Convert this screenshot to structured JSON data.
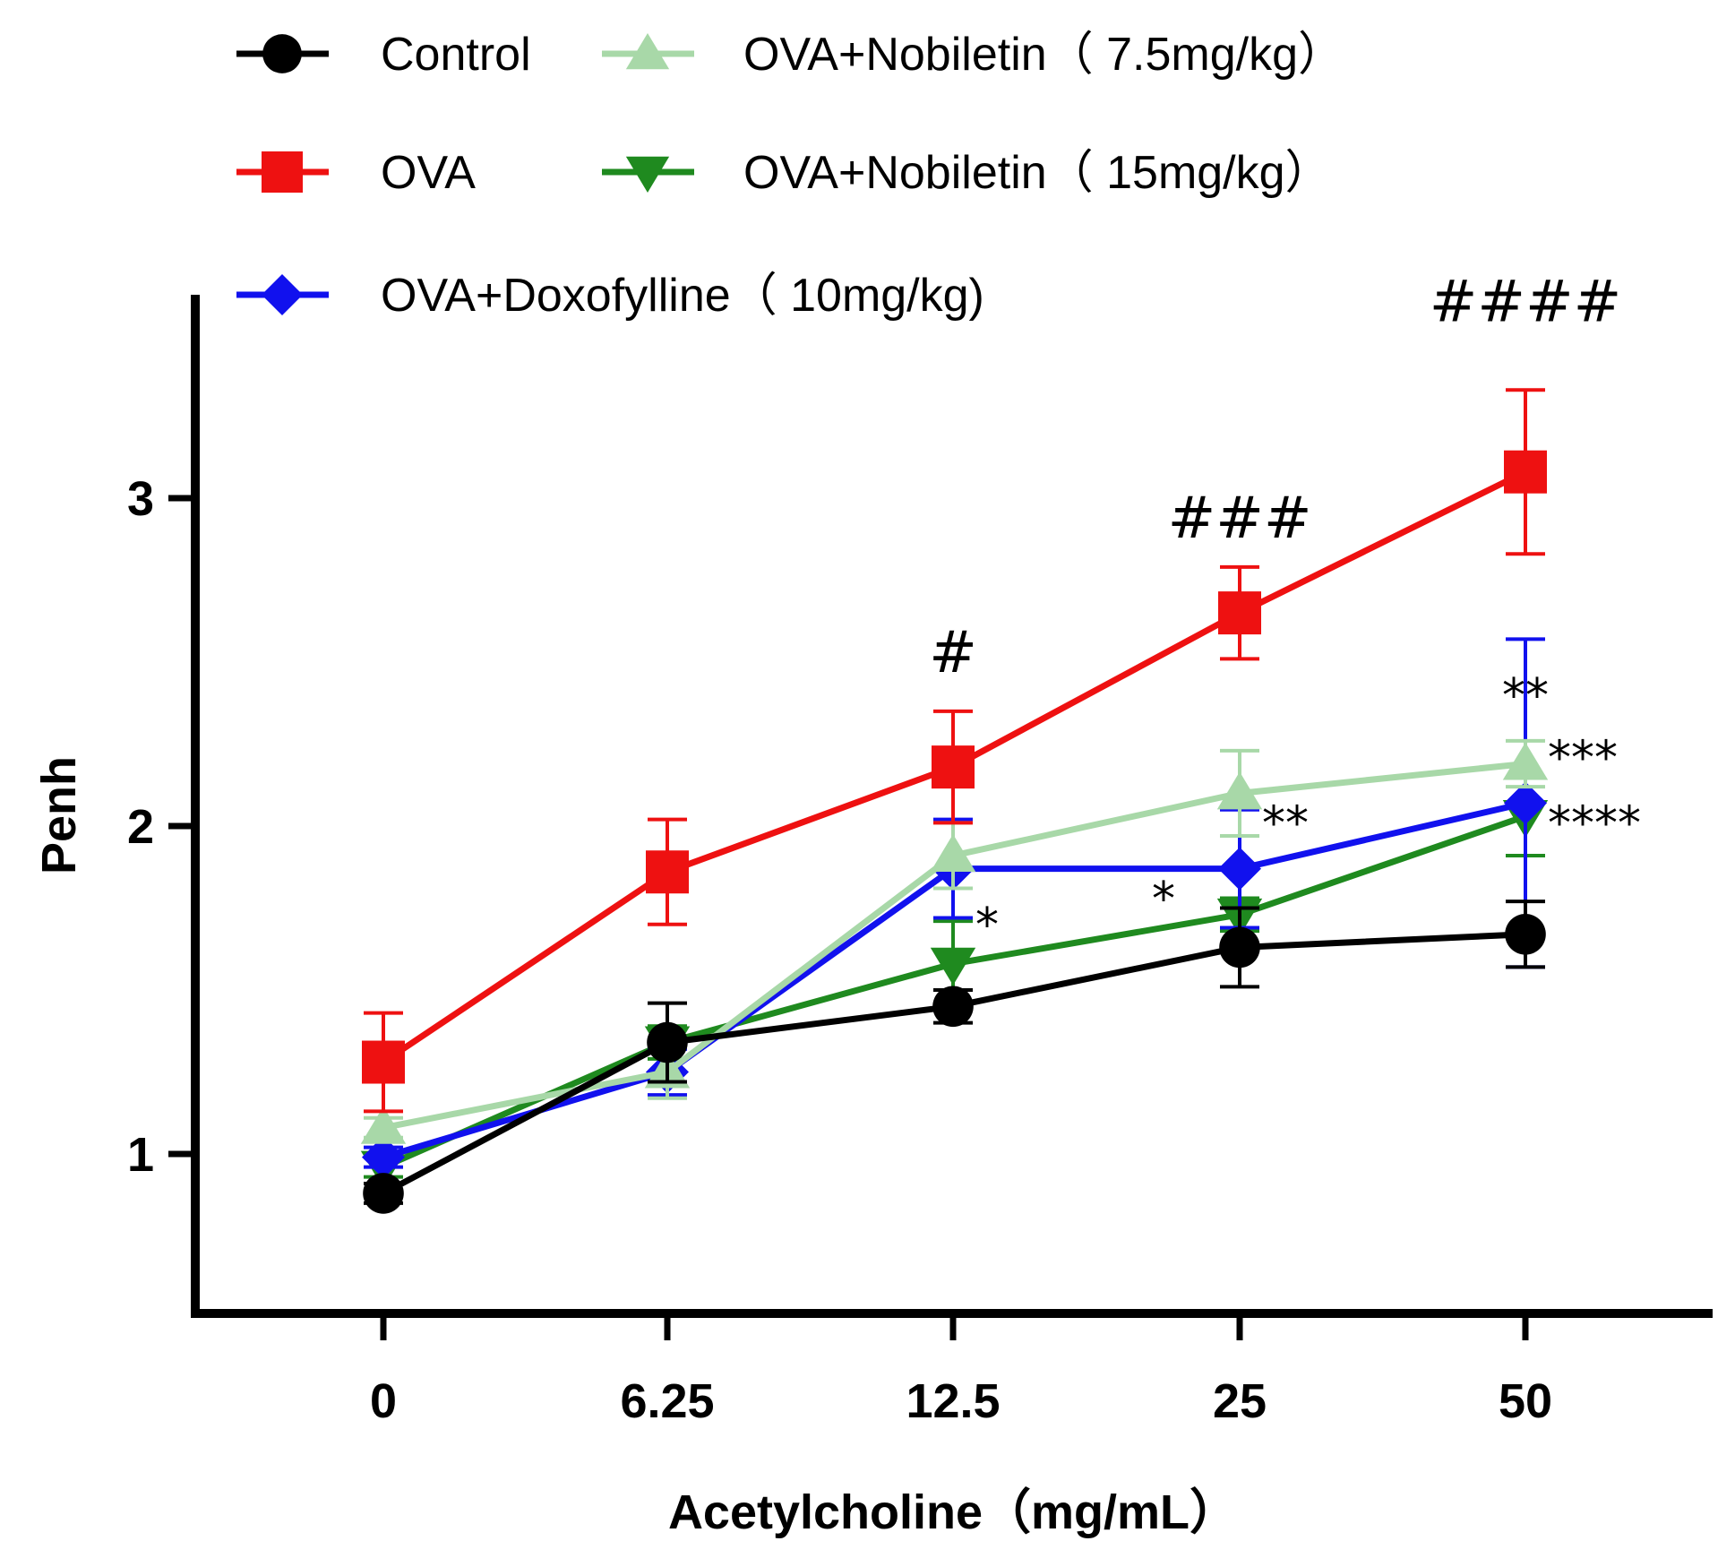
{
  "chart_data": {
    "type": "line",
    "title": "",
    "xlabel": "Acetylcholine（mg/mL）",
    "ylabel": "Penh",
    "categories": [
      "0",
      "6.25",
      "12.5",
      "25",
      "50"
    ],
    "y_ticks": [
      "1",
      "2",
      "3"
    ],
    "ylim": [
      0.5,
      3.6
    ],
    "grid": false,
    "legend_position": "top",
    "error_bars": true,
    "series": [
      {
        "name": "Control",
        "color": "#000000",
        "marker": "circle",
        "values": [
          0.88,
          1.34,
          1.45,
          1.63,
          1.67
        ],
        "errors": [
          0.03,
          0.12,
          0.05,
          0.12,
          0.1
        ]
      },
      {
        "name": "OVA",
        "color": "#ee1111",
        "marker": "square",
        "values": [
          1.28,
          1.86,
          2.18,
          2.65,
          3.08
        ],
        "errors": [
          0.15,
          0.16,
          0.17,
          0.14,
          0.25
        ]
      },
      {
        "name": "OVA+Doxofylline（ 10mg/kg)",
        "color": "#1111ee",
        "marker": "diamond",
        "values": [
          0.99,
          1.25,
          1.87,
          1.87,
          2.07
        ],
        "errors": [
          0.03,
          0.07,
          0.15,
          0.18,
          0.5
        ]
      },
      {
        "name": "OVA+Nobiletin（ 7.5mg/kg）",
        "color": "#a8d8a8",
        "marker": "triangle-up",
        "values": [
          1.08,
          1.25,
          1.91,
          2.1,
          2.19
        ],
        "errors": [
          0.03,
          0.08,
          0.1,
          0.13,
          0.07
        ]
      },
      {
        "name": "OVA+Nobiletin（ 15mg/kg）",
        "color": "#1f8a1f",
        "marker": "triangle-down",
        "values": [
          0.96,
          1.34,
          1.58,
          1.73,
          2.03
        ],
        "errors": [
          0.03,
          0.05,
          0.13,
          0.05,
          0.12
        ]
      }
    ],
    "annotations": [
      {
        "text": "#",
        "category": "12.5",
        "y": 2.47,
        "kind": "hash"
      },
      {
        "text": "###",
        "category": "25",
        "y": 2.88,
        "kind": "hash"
      },
      {
        "text": "####",
        "category": "50",
        "y": 3.54,
        "kind": "hash"
      },
      {
        "text": "*",
        "category": "12.5",
        "y": 1.65,
        "kind": "star",
        "side": "right"
      },
      {
        "text": "*",
        "category": "25",
        "y": 1.73,
        "kind": "star",
        "side": "left"
      },
      {
        "text": "**",
        "category": "25",
        "y": 1.96,
        "kind": "star",
        "side": "right"
      },
      {
        "text": "**",
        "category": "50",
        "y": 2.35,
        "kind": "star",
        "side": "center"
      },
      {
        "text": "***",
        "category": "50",
        "y": 2.16,
        "kind": "star",
        "side": "right"
      },
      {
        "text": "****",
        "category": "50",
        "y": 1.96,
        "kind": "star",
        "side": "right"
      }
    ]
  }
}
